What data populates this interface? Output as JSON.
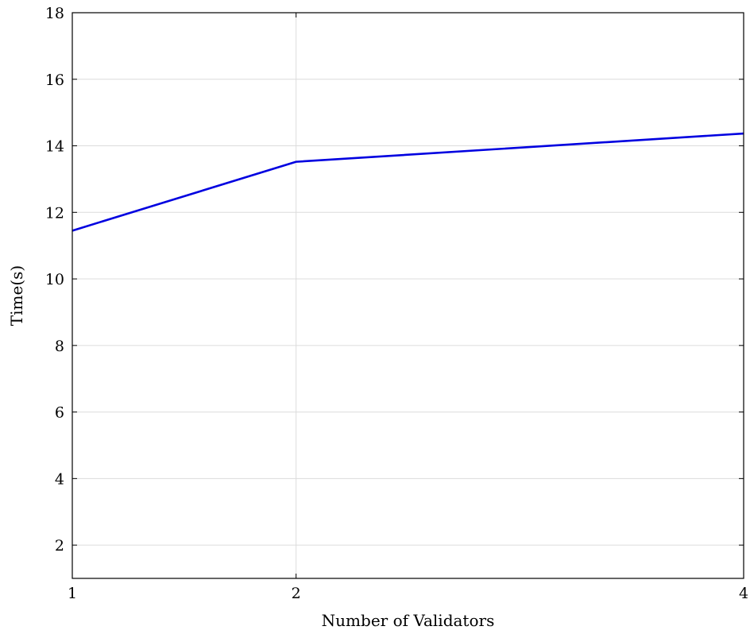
{
  "chart_data": {
    "type": "line",
    "title": "",
    "xlabel": "Number of Validators",
    "ylabel": "Time(s)",
    "x_ticks": [
      "1",
      "2",
      "4"
    ],
    "y_ticks": [
      "2",
      "4",
      "6",
      "8",
      "10",
      "12",
      "14",
      "16",
      "18"
    ],
    "xlim": [
      1,
      4
    ],
    "ylim": [
      1,
      18
    ],
    "grid": true,
    "series": [
      {
        "color": "#0000e0",
        "points": [
          {
            "x": 1,
            "y": 11.45
          },
          {
            "x": 2,
            "y": 13.52
          },
          {
            "x": 4,
            "y": 14.37
          }
        ]
      }
    ]
  }
}
